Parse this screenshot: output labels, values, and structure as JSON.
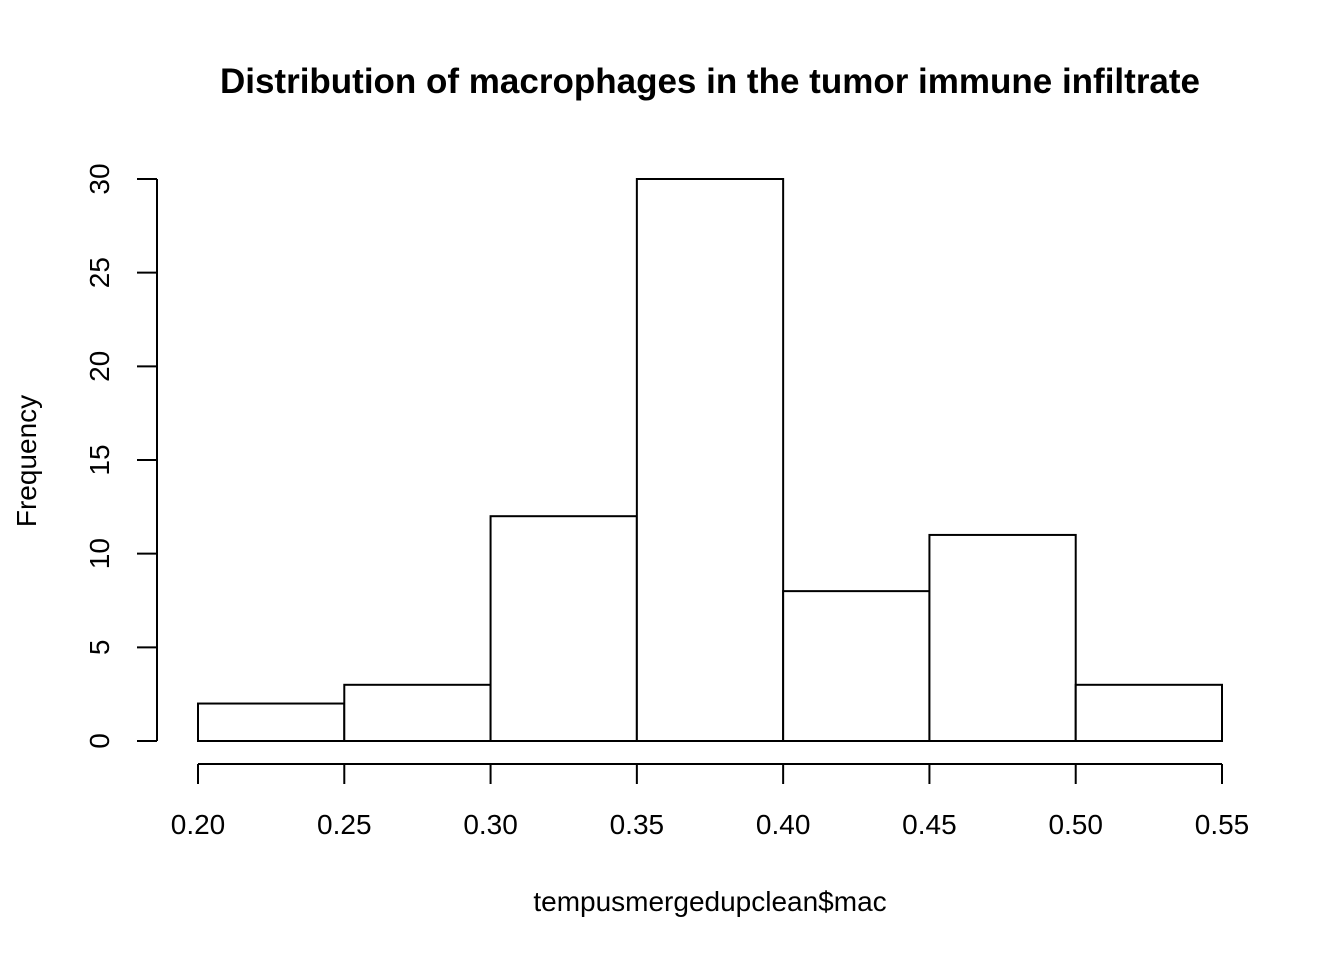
{
  "chart_data": {
    "type": "bar",
    "title": "Distribution of macrophages in the tumor immune infiltrate",
    "xlabel": "tempusmergedupclean$mac",
    "ylabel": "Frequency",
    "bin_edges": [
      0.2,
      0.25,
      0.3,
      0.35,
      0.4,
      0.45,
      0.5,
      0.55
    ],
    "values": [
      2,
      3,
      12,
      30,
      8,
      11,
      3
    ],
    "x_ticks": [
      "0.20",
      "0.25",
      "0.30",
      "0.35",
      "0.40",
      "0.45",
      "0.50",
      "0.55"
    ],
    "y_ticks": [
      "0",
      "5",
      "10",
      "15",
      "20",
      "25",
      "30"
    ],
    "xlim": [
      0.2,
      0.55
    ],
    "ylim": [
      0,
      30
    ],
    "grid": false,
    "legend": "none",
    "bar_fill": "#ffffff",
    "bar_stroke": "#000000"
  }
}
